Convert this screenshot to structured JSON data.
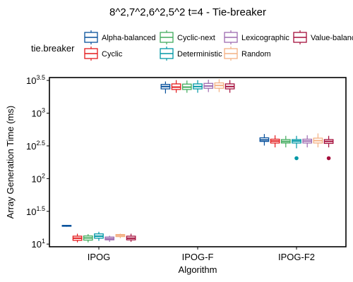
{
  "chart_data": {
    "type": "boxplot",
    "title": "8^2,7^2,6^2,5^2 t=4 - Tie-breaker",
    "xlabel": "Algorithm",
    "ylabel": "Array Generation Time (ms)",
    "y_scale": "log10",
    "ylim": [
      9.1,
      3500
    ],
    "y_ticks": [
      {
        "value": 10,
        "base": "10",
        "exp": "1"
      },
      {
        "value": 31.62,
        "base": "10",
        "exp": "1.5"
      },
      {
        "value": 100,
        "base": "10",
        "exp": "2"
      },
      {
        "value": 316.2,
        "base": "10",
        "exp": "2.5"
      },
      {
        "value": 1000,
        "base": "10",
        "exp": "3"
      },
      {
        "value": 3162.3,
        "base": "10",
        "exp": "3.5"
      }
    ],
    "categories": [
      "IPOG",
      "IPOG-F",
      "IPOG-F2"
    ],
    "legend": {
      "title": "tie.breaker",
      "placement": "top"
    },
    "series": [
      {
        "name": "Alpha-balanced",
        "color": "#08519c",
        "boxes": [
          {
            "min": 18.4,
            "q1": 18.7,
            "median": 19.0,
            "q3": 19.3,
            "max": 19.6,
            "outliers": []
          },
          {
            "min": 2000,
            "q1": 2350,
            "median": 2550,
            "q3": 2750,
            "max": 3050,
            "outliers": []
          },
          {
            "min": 320,
            "q1": 370,
            "median": 390,
            "q3": 420,
            "max": 480,
            "outliers": []
          }
        ]
      },
      {
        "name": "Cyclic",
        "color": "#e31a1c",
        "boxes": [
          {
            "min": 10.6,
            "q1": 11.4,
            "median": 12.3,
            "q3": 13.2,
            "max": 14.4,
            "outliers": []
          },
          {
            "min": 2050,
            "q1": 2300,
            "median": 2500,
            "q3": 2800,
            "max": 3200,
            "outliers": []
          },
          {
            "min": 300,
            "q1": 350,
            "median": 375,
            "q3": 400,
            "max": 460,
            "outliers": []
          }
        ]
      },
      {
        "name": "Cyclic-next",
        "color": "#41ab5d",
        "boxes": [
          {
            "min": 10.6,
            "q1": 11.5,
            "median": 12.4,
            "q3": 13.3,
            "max": 14.2,
            "outliers": []
          },
          {
            "min": 2050,
            "q1": 2300,
            "median": 2500,
            "q3": 2780,
            "max": 3150,
            "outliers": []
          },
          {
            "min": 300,
            "q1": 350,
            "median": 370,
            "q3": 395,
            "max": 450,
            "outliers": []
          }
        ]
      },
      {
        "name": "Deterministic",
        "color": "#0098a6",
        "boxes": [
          {
            "min": 11.2,
            "q1": 12.3,
            "median": 13.2,
            "q3": 14.3,
            "max": 15.4,
            "outliers": []
          },
          {
            "min": 2050,
            "q1": 2350,
            "median": 2550,
            "q3": 2800,
            "max": 3200,
            "outliers": []
          },
          {
            "min": 290,
            "q1": 350,
            "median": 375,
            "q3": 395,
            "max": 450,
            "outliers": [
              205
            ]
          }
        ]
      },
      {
        "name": "Lexicographic",
        "color": "#9e6bb0",
        "boxes": [
          {
            "min": 10.8,
            "q1": 11.6,
            "median": 12.1,
            "q3": 12.8,
            "max": 13.4,
            "outliers": []
          },
          {
            "min": 2100,
            "q1": 2400,
            "median": 2600,
            "q3": 2850,
            "max": 3250,
            "outliers": []
          },
          {
            "min": 300,
            "q1": 350,
            "median": 375,
            "q3": 400,
            "max": 460,
            "outliers": []
          }
        ]
      },
      {
        "name": "Random",
        "color": "#f4b183",
        "boxes": [
          {
            "min": 12.3,
            "q1": 13.0,
            "median": 13.6,
            "q3": 14.0,
            "max": 14.4,
            "outliers": []
          },
          {
            "min": 2100,
            "q1": 2400,
            "median": 2650,
            "q3": 2900,
            "max": 3300,
            "outliers": []
          },
          {
            "min": 300,
            "q1": 350,
            "median": 380,
            "q3": 415,
            "max": 490,
            "outliers": []
          }
        ]
      },
      {
        "name": "Value-balanced",
        "color": "#a50f3c",
        "boxes": [
          {
            "min": 10.8,
            "q1": 11.6,
            "median": 12.3,
            "q3": 13.2,
            "max": 14.4,
            "outliers": []
          },
          {
            "min": 2050,
            "q1": 2350,
            "median": 2550,
            "q3": 2800,
            "max": 3200,
            "outliers": []
          },
          {
            "min": 300,
            "q1": 345,
            "median": 370,
            "q3": 395,
            "max": 450,
            "outliers": [
              205
            ]
          }
        ]
      }
    ]
  }
}
